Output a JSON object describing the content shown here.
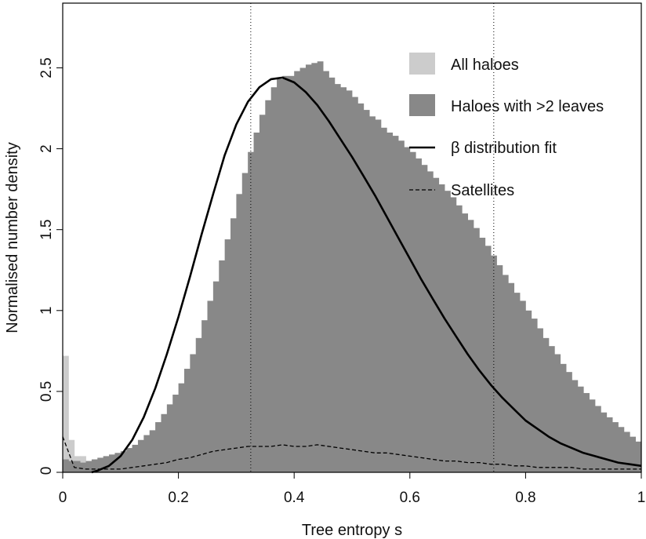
{
  "chart_data": {
    "type": "bar",
    "title": "",
    "xlabel": "Tree entropy s",
    "ylabel": "Normalised number density",
    "xlim": [
      0,
      1
    ],
    "ylim": [
      0,
      2.9
    ],
    "x_ticks": [
      0,
      0.2,
      0.4,
      0.6,
      0.8,
      1
    ],
    "x_tick_labels": [
      "0",
      "0.2",
      "0.4",
      "0.6",
      "0.8",
      "1"
    ],
    "y_ticks": [
      0,
      0.5,
      1,
      1.5,
      2,
      2.5
    ],
    "y_tick_labels": [
      "0",
      "0.5",
      "1",
      "1.5",
      "2",
      "2.5"
    ],
    "grid": false,
    "legend_position": "top-right",
    "bin_width": 0.01,
    "vertical_lines": [
      0.325,
      0.745
    ],
    "legend": [
      {
        "label": "All haloes",
        "style": "patch",
        "color": "#cccccc"
      },
      {
        "label": "Haloes with >2 leaves",
        "style": "patch",
        "color": "#888888"
      },
      {
        "label": "β distribution fit",
        "style": "solid-line",
        "color": "#000000"
      },
      {
        "label": "Satellites",
        "style": "dashed-line",
        "color": "#000000"
      }
    ],
    "series": [
      {
        "name": "All haloes",
        "kind": "histogram",
        "color": "#cccccc",
        "bin_start": 0.0,
        "values": [
          0.72,
          0.2,
          0.1,
          0.1
        ]
      },
      {
        "name": "Haloes with >2 leaves",
        "kind": "histogram",
        "color": "#888888",
        "bin_start": 0.0,
        "values": [
          0.08,
          0.07,
          0.07,
          0.06,
          0.07,
          0.08,
          0.09,
          0.1,
          0.11,
          0.12,
          0.13,
          0.15,
          0.17,
          0.2,
          0.23,
          0.26,
          0.31,
          0.36,
          0.42,
          0.48,
          0.55,
          0.64,
          0.73,
          0.83,
          0.94,
          1.06,
          1.18,
          1.31,
          1.44,
          1.57,
          1.72,
          1.85,
          1.98,
          2.1,
          2.21,
          2.3,
          2.38,
          2.43,
          2.45,
          2.45,
          2.48,
          2.5,
          2.52,
          2.53,
          2.54,
          2.48,
          2.44,
          2.4,
          2.38,
          2.36,
          2.32,
          2.28,
          2.24,
          2.2,
          2.18,
          2.13,
          2.1,
          2.08,
          2.05,
          2.01,
          1.98,
          1.94,
          1.9,
          1.86,
          1.82,
          1.78,
          1.74,
          1.7,
          1.65,
          1.6,
          1.56,
          1.51,
          1.45,
          1.4,
          1.34,
          1.28,
          1.22,
          1.17,
          1.11,
          1.06,
          1.0,
          0.95,
          0.89,
          0.83,
          0.78,
          0.73,
          0.67,
          0.62,
          0.57,
          0.53,
          0.49,
          0.45,
          0.41,
          0.37,
          0.34,
          0.31,
          0.28,
          0.25,
          0.22,
          0.19,
          0.17,
          0.15,
          0.13,
          0.11,
          0.1,
          0.08,
          0.07,
          0.06,
          0.05,
          0.05,
          0.05
        ]
      },
      {
        "name": "β distribution fit",
        "kind": "line",
        "style": "solid",
        "color": "#000000",
        "x": [
          0.05,
          0.06,
          0.08,
          0.1,
          0.12,
          0.14,
          0.16,
          0.18,
          0.2,
          0.22,
          0.24,
          0.26,
          0.28,
          0.3,
          0.32,
          0.34,
          0.36,
          0.38,
          0.4,
          0.42,
          0.44,
          0.46,
          0.48,
          0.5,
          0.52,
          0.54,
          0.56,
          0.58,
          0.6,
          0.62,
          0.64,
          0.66,
          0.68,
          0.7,
          0.72,
          0.74,
          0.76,
          0.78,
          0.8,
          0.82,
          0.84,
          0.86,
          0.88,
          0.9,
          0.92,
          0.94,
          0.96,
          0.98,
          1.0
        ],
        "y": [
          0.0,
          0.01,
          0.04,
          0.1,
          0.2,
          0.34,
          0.52,
          0.73,
          0.96,
          1.21,
          1.47,
          1.72,
          1.96,
          2.15,
          2.29,
          2.38,
          2.43,
          2.44,
          2.41,
          2.35,
          2.27,
          2.17,
          2.06,
          1.95,
          1.83,
          1.71,
          1.58,
          1.45,
          1.32,
          1.19,
          1.07,
          0.95,
          0.84,
          0.73,
          0.63,
          0.54,
          0.46,
          0.39,
          0.32,
          0.27,
          0.22,
          0.18,
          0.15,
          0.12,
          0.1,
          0.08,
          0.06,
          0.05,
          0.04
        ]
      },
      {
        "name": "Satellites",
        "kind": "line",
        "style": "dashed",
        "color": "#000000",
        "x": [
          0.0,
          0.02,
          0.04,
          0.06,
          0.08,
          0.1,
          0.12,
          0.14,
          0.16,
          0.18,
          0.2,
          0.22,
          0.24,
          0.26,
          0.28,
          0.3,
          0.32,
          0.34,
          0.36,
          0.38,
          0.4,
          0.42,
          0.44,
          0.46,
          0.48,
          0.5,
          0.52,
          0.54,
          0.56,
          0.58,
          0.6,
          0.62,
          0.64,
          0.66,
          0.68,
          0.7,
          0.72,
          0.74,
          0.76,
          0.78,
          0.8,
          0.82,
          0.84,
          0.86,
          0.88,
          0.9,
          0.92,
          0.94,
          0.96,
          0.98,
          1.0
        ],
        "y": [
          0.22,
          0.03,
          0.02,
          0.02,
          0.02,
          0.02,
          0.03,
          0.04,
          0.05,
          0.06,
          0.08,
          0.09,
          0.11,
          0.13,
          0.14,
          0.15,
          0.16,
          0.16,
          0.16,
          0.17,
          0.16,
          0.16,
          0.17,
          0.16,
          0.15,
          0.14,
          0.13,
          0.12,
          0.12,
          0.11,
          0.1,
          0.09,
          0.08,
          0.07,
          0.07,
          0.06,
          0.06,
          0.05,
          0.05,
          0.04,
          0.04,
          0.03,
          0.03,
          0.03,
          0.03,
          0.02,
          0.02,
          0.02,
          0.02,
          0.02,
          0.02
        ]
      }
    ]
  }
}
